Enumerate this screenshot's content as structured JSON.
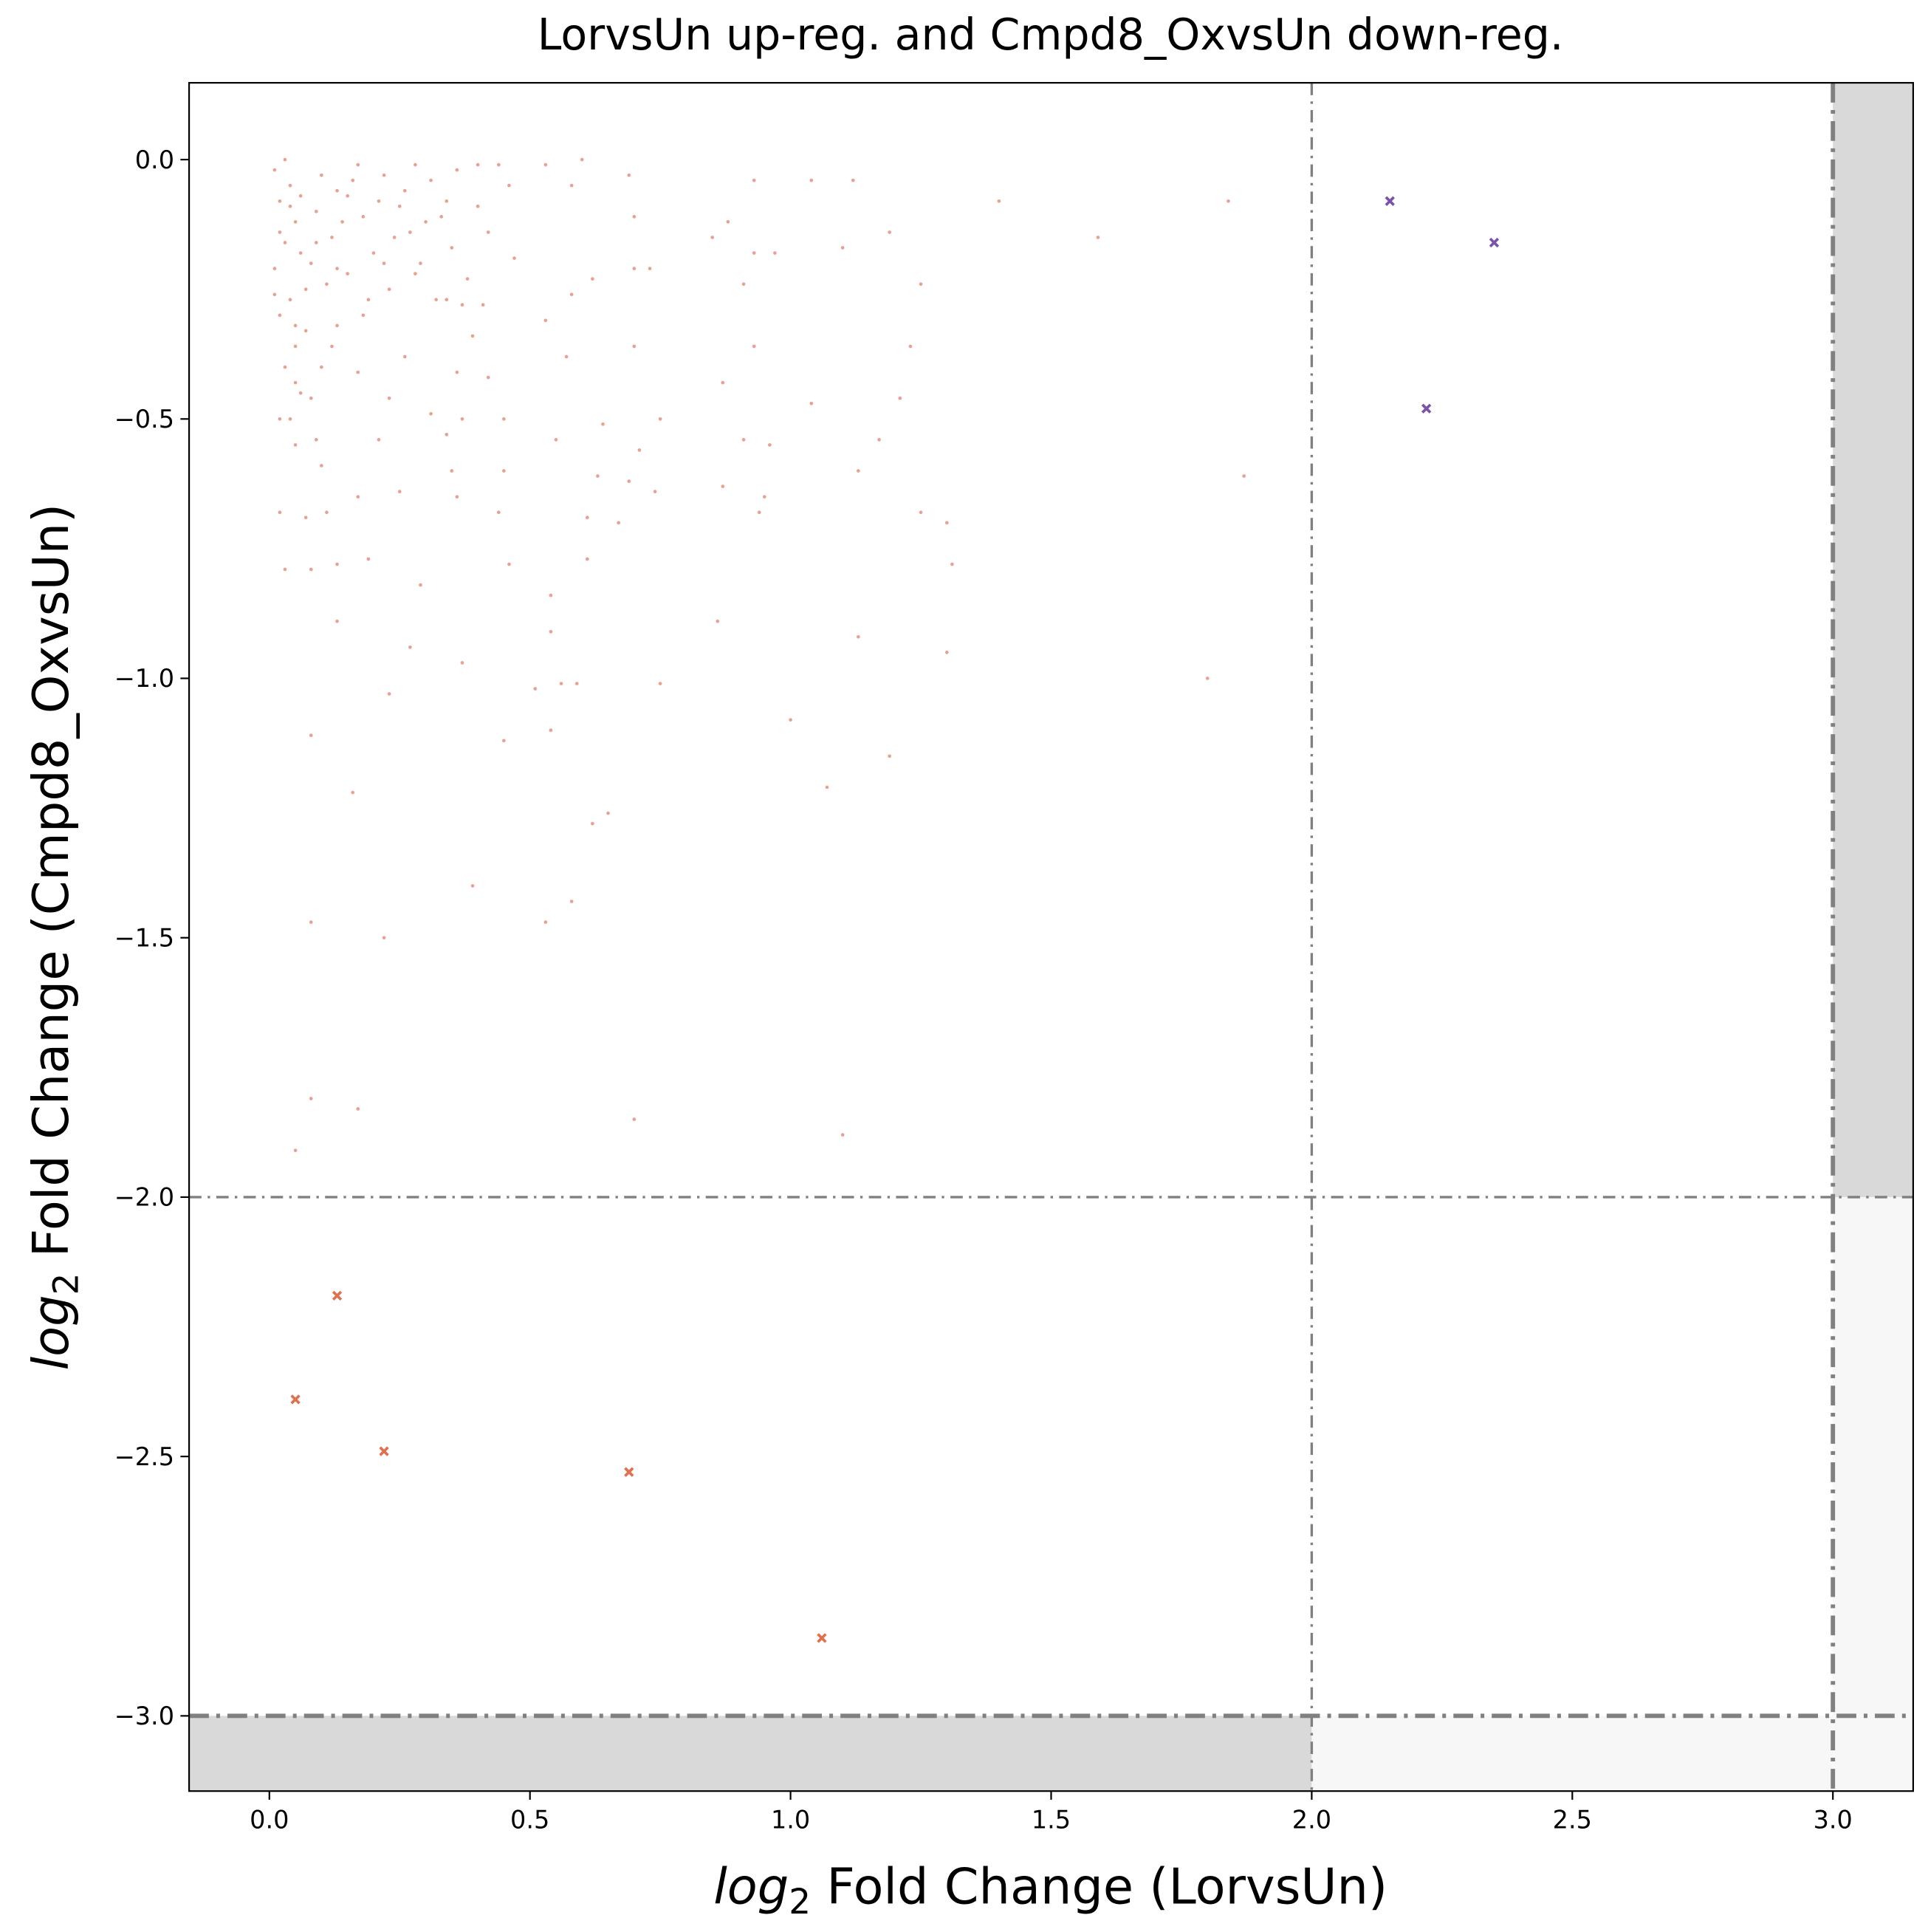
{
  "chart_data": {
    "type": "scatter",
    "title": "LorvsUn up-reg. and Cmpd8_OxvsUn down-reg.",
    "x_label": [
      "log",
      "2",
      " Fold Change (LorvsUn)"
    ],
    "y_label": [
      "log",
      "2",
      " Fold Change (Cmpd8_OxvsUn)"
    ],
    "xlim": [
      -0.154,
      3.154
    ],
    "ylim": [
      -3.145,
      0.148
    ],
    "xticks": [
      {
        "value": 0,
        "label": "0.0"
      },
      {
        "value": 0.5,
        "label": "0.5"
      },
      {
        "value": 1,
        "label": "1.0"
      },
      {
        "value": 1.5,
        "label": "1.5"
      },
      {
        "value": 2,
        "label": "2.0"
      },
      {
        "value": 2.5,
        "label": "2.5"
      },
      {
        "value": 3,
        "label": "3.0"
      }
    ],
    "yticks": [
      {
        "value": 0,
        "label": "0.0"
      },
      {
        "value": -0.5,
        "label": "−0.5"
      },
      {
        "value": -1,
        "label": "−1.0"
      },
      {
        "value": -1.5,
        "label": "−1.5"
      },
      {
        "value": -2,
        "label": "−2.0"
      },
      {
        "value": -2.5,
        "label": "−2.5"
      },
      {
        "value": -3,
        "label": "−3.0"
      }
    ],
    "vlines": [
      2,
      3
    ],
    "hlines": [
      -2,
      -3
    ],
    "series": [
      {
        "color": "#e07a5f",
        "marker": "dot",
        "x": [
          1.4,
          1.84,
          1.59,
          1.8,
          1.87,
          1.19,
          1.25,
          1.23,
          1.21,
          1.17,
          1.13,
          1.25,
          1.3,
          1.31,
          1.3,
          1.13,
          1.19,
          1.07,
          1.0,
          1.1,
          0.7,
          0.17,
          0.08,
          0.05,
          0.22,
          0.08,
          0.53,
          0.58,
          0.39,
          0.62,
          0.65,
          0.16,
          0.08,
          0.45,
          0.54,
          0.23,
          0.51,
          0.56,
          0.59,
          0.75,
          0.37,
          0.27,
          0.54,
          0.86,
          0.13,
          0.54,
          0.29,
          0.46,
          0.19,
          0.08,
          0.03,
          0.13,
          0.61,
          0.07,
          0.11,
          0.02,
          0.17,
          0.36,
          0.44,
          0.61,
          0.67,
          0.94,
          0.95,
          0.74,
          0.69,
          0.87,
          0.63,
          0.45,
          0.35,
          0.25,
          0.1,
          0.09,
          0.05,
          0.21,
          0.34,
          0.55,
          0.71,
          0.91,
          0.96,
          0.75,
          0.64,
          0.45,
          0.37,
          0.31,
          0.02,
          0.04,
          0.08,
          0.23,
          0.42,
          0.36,
          0.17,
          0.05,
          0.57,
          0.87,
          1.04,
          0.93,
          0.7,
          0.26,
          0.05,
          0.13,
          0.39,
          0.53,
          0.58,
          0.62,
          0.7,
          0.73,
          0.91,
          0.88,
          0.97,
          0.93,
          0.85,
          1.1,
          1.04,
          1.12,
          0.93,
          0.7,
          0.69,
          0.6,
          0.58,
          0.53,
          0.47,
          0.46,
          0.4,
          0.37,
          0.34,
          0.28,
          0.01,
          0.02,
          0.03,
          0.04,
          0.05,
          0.06,
          0.01,
          0.02,
          0.07,
          0.09,
          0.1,
          0.12,
          0.13,
          0.15,
          0.17,
          0.18,
          0.2,
          0.22,
          0.23,
          0.25,
          0.27,
          0.29,
          0.31,
          0.33,
          0.35,
          0.36,
          0.38,
          0.4,
          0.42,
          0.44,
          0.03,
          0.04,
          0.06,
          0.08,
          0.11,
          0.14,
          0.16,
          0.19,
          0.21,
          0.24,
          0.26,
          0.28,
          0.3,
          0.32,
          0.02,
          0.05,
          0.03,
          0.07,
          0.12,
          0.18,
          0.01,
          0.06,
          0.1,
          0.15,
          0.22,
          0.34,
          0.41,
          0.09,
          0.13,
          0.04
        ],
        "values": [
          -0.08,
          -0.08,
          -0.15,
          -1.0,
          -0.61,
          -0.14,
          -0.24,
          -0.36,
          -0.46,
          -0.54,
          -0.6,
          -0.68,
          -0.7,
          -0.78,
          -0.95,
          -0.92,
          -1.15,
          -1.21,
          -1.08,
          -1.88,
          -1.85,
          -1.83,
          -1.81,
          -1.91,
          -1.5,
          -1.47,
          -1.47,
          -1.43,
          -1.4,
          -1.28,
          -1.26,
          -1.22,
          -1.11,
          -1.12,
          -1.1,
          -1.03,
          -1.02,
          -1.01,
          -1.01,
          -1.01,
          -0.97,
          -0.94,
          -0.91,
          -0.89,
          -0.89,
          -0.84,
          -0.82,
          -0.78,
          -0.77,
          -0.79,
          -0.79,
          -0.78,
          -0.77,
          -0.69,
          -0.68,
          -0.68,
          -0.65,
          -0.65,
          -0.68,
          -0.69,
          -0.7,
          -0.68,
          -0.65,
          -0.64,
          -0.62,
          -0.63,
          -0.61,
          -0.6,
          -0.6,
          -0.64,
          -0.59,
          -0.54,
          -0.55,
          -0.54,
          -0.53,
          -0.54,
          -0.56,
          -0.54,
          -0.55,
          -0.5,
          -0.51,
          -0.5,
          -0.5,
          -0.49,
          -0.5,
          -0.5,
          -0.46,
          -0.46,
          -0.42,
          -0.41,
          -0.41,
          -0.43,
          -0.38,
          -0.43,
          -0.47,
          -0.36,
          -0.36,
          -0.38,
          -0.32,
          -0.32,
          -0.34,
          -0.31,
          -0.26,
          -0.23,
          -0.21,
          -0.21,
          -0.24,
          -0.12,
          -0.18,
          -0.18,
          -0.15,
          -0.17,
          -0.04,
          -0.04,
          -0.04,
          -0.11,
          -0.03,
          -0.0,
          -0.05,
          -0.01,
          -0.19,
          -0.05,
          -0.01,
          -0.28,
          -0.08,
          -0.01,
          -0.02,
          -0.08,
          -0.0,
          -0.05,
          -0.12,
          -0.18,
          -0.21,
          -0.3,
          -0.25,
          -0.1,
          -0.03,
          -0.15,
          -0.06,
          -0.22,
          -0.01,
          -0.11,
          -0.18,
          -0.03,
          -0.25,
          -0.09,
          -0.14,
          -0.2,
          -0.04,
          -0.11,
          -0.17,
          -0.02,
          -0.23,
          -0.09,
          -0.14,
          -0.01,
          -0.16,
          -0.27,
          -0.07,
          -0.2,
          -0.24,
          -0.12,
          -0.04,
          -0.27,
          -0.08,
          -0.15,
          -0.06,
          -0.22,
          -0.12,
          -0.27,
          -0.14,
          -0.36,
          -0.4,
          -0.33,
          -0.36,
          -0.3,
          -0.26,
          -0.45,
          -0.4,
          -0.07,
          -0.2,
          -0.27,
          -0.28,
          -0.16,
          -0.21,
          -0.09
        ]
      },
      {
        "color": "#e0704f",
        "marker": "x",
        "x": [
          0.13,
          0.05,
          0.22,
          0.69,
          1.06
        ],
        "values": [
          -2.19,
          -2.39,
          -2.49,
          -2.53,
          -2.85
        ]
      },
      {
        "color": "#7b52ab",
        "marker": "x",
        "x": [
          2.15,
          2.35,
          2.22
        ],
        "values": [
          -0.08,
          -0.16,
          -0.48
        ]
      }
    ]
  }
}
